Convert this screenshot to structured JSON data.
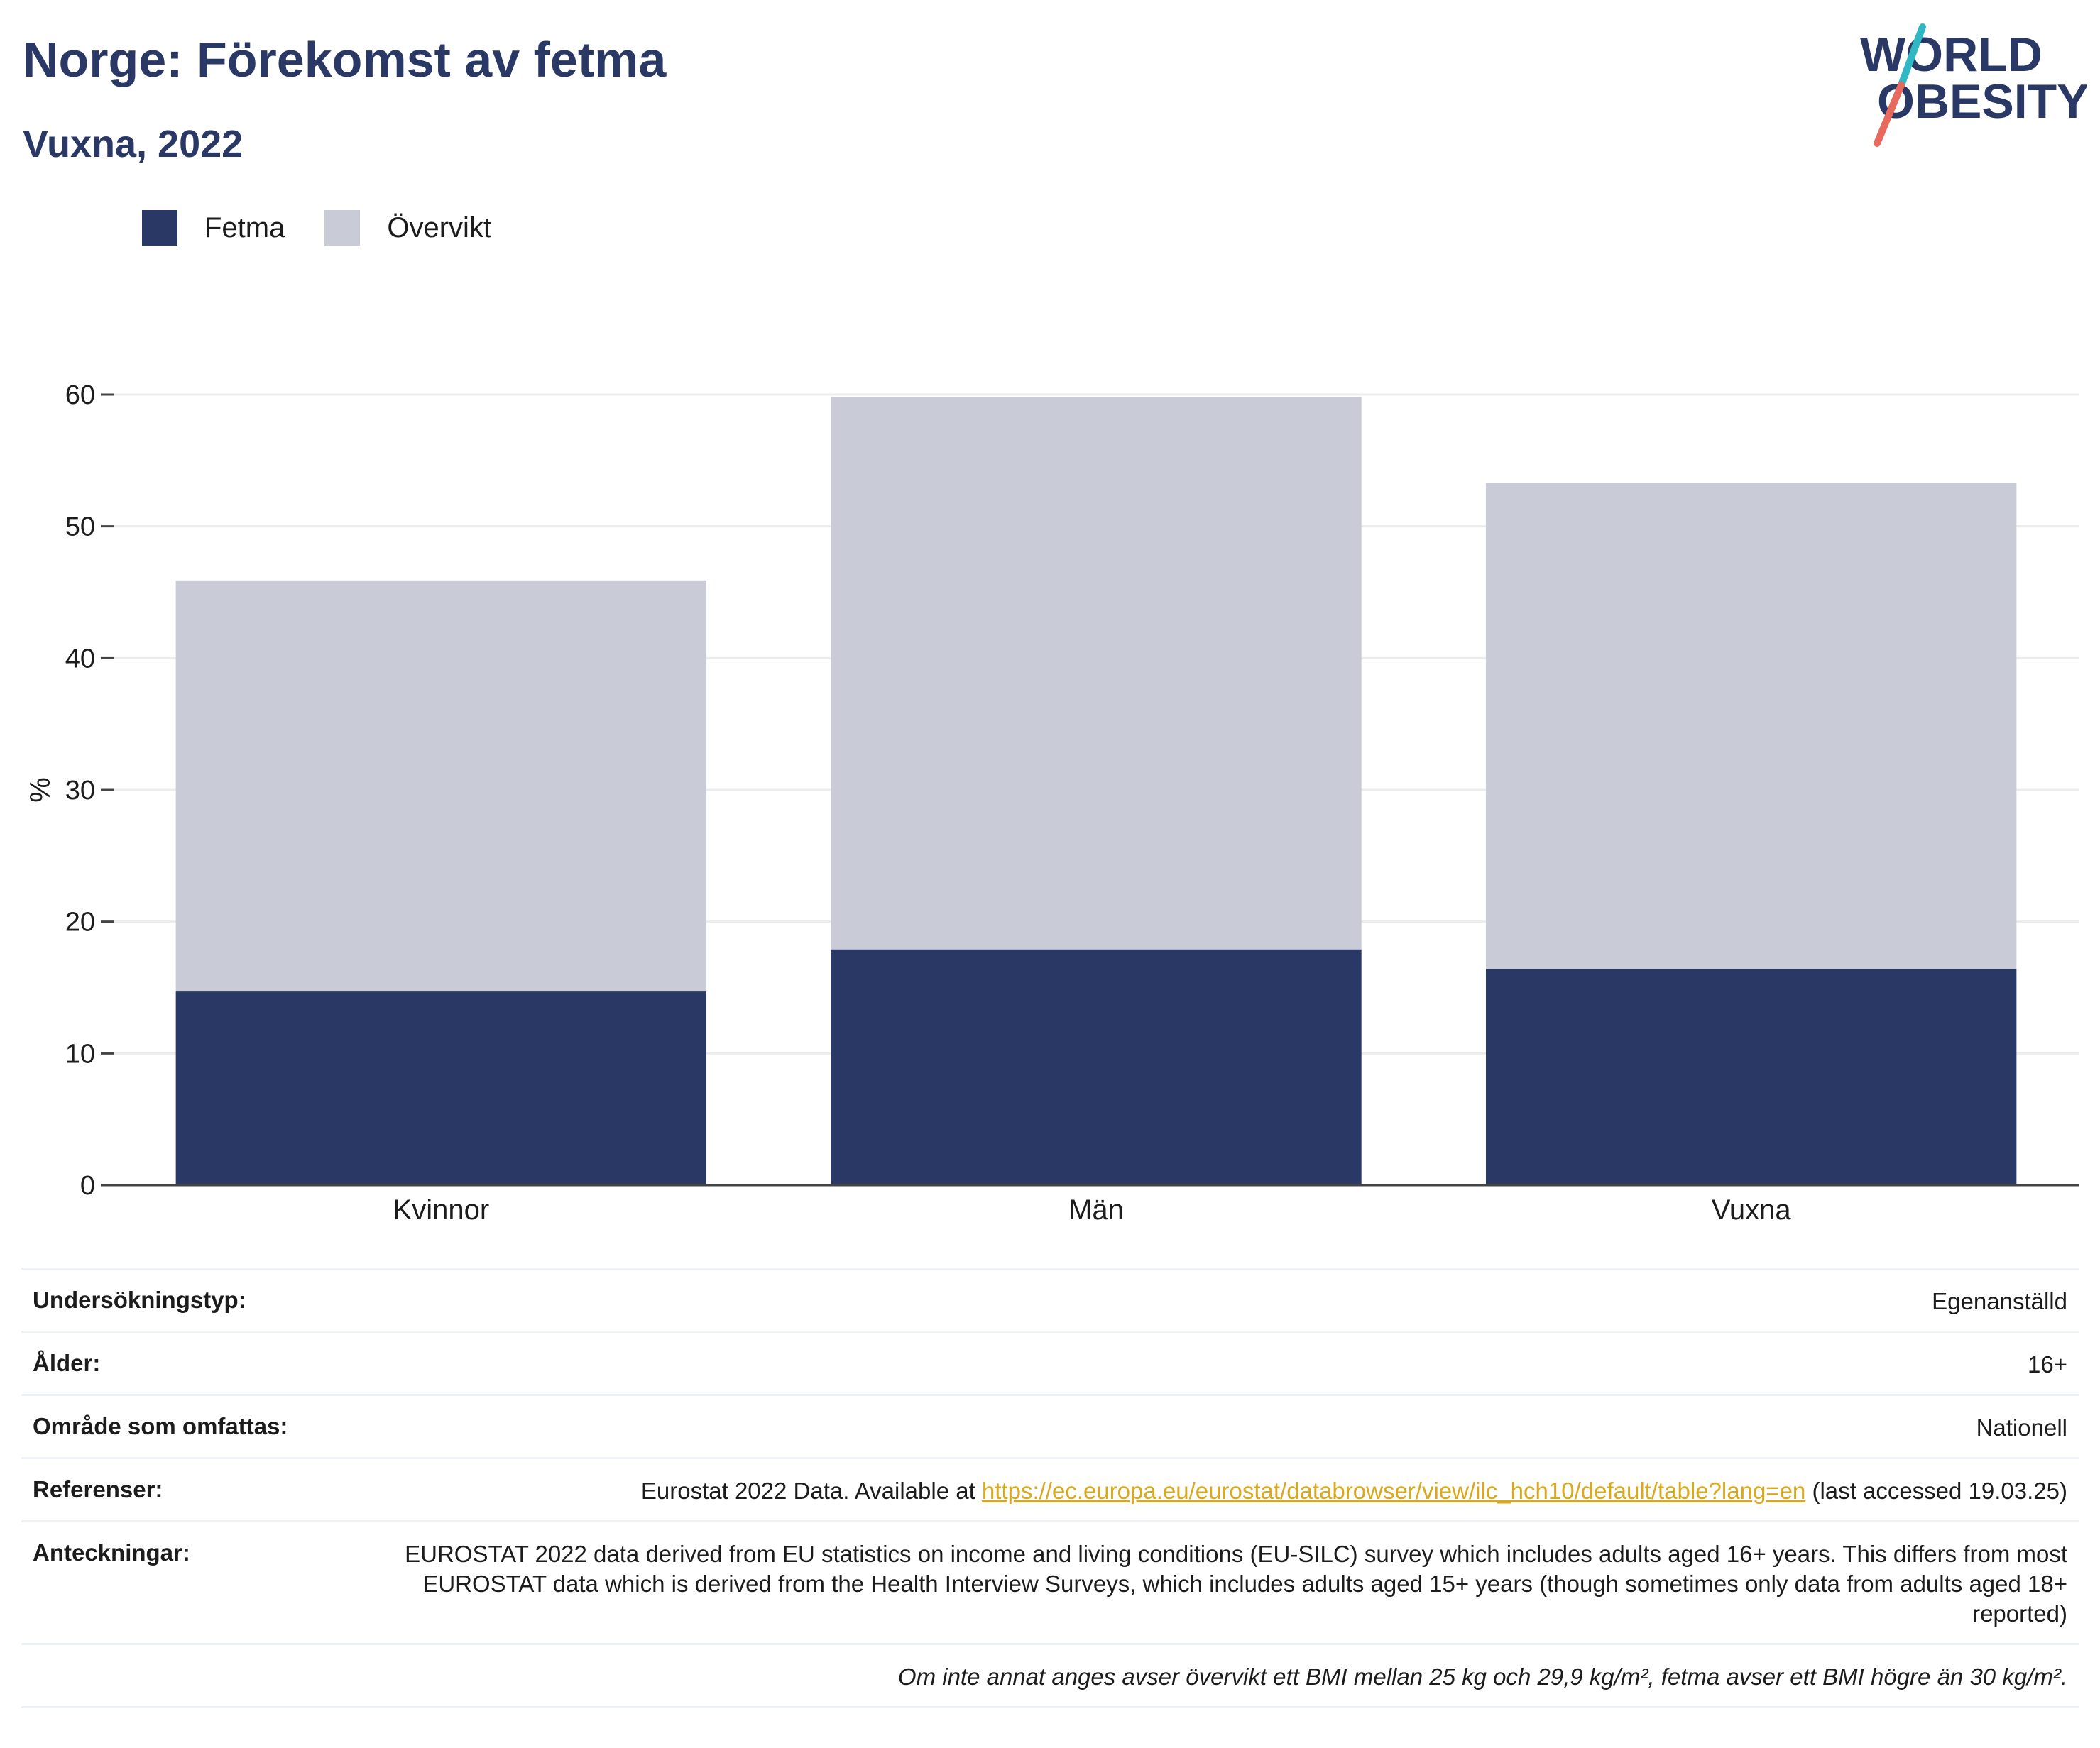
{
  "header": {
    "title": "Norge: Förekomst av fetma",
    "subtitle": "Vuxna, 2022"
  },
  "logo": {
    "text_line1": "WORLD",
    "text_line2": "OBESITY",
    "colors": {
      "text": "#2a3865",
      "slash_top": "#2fb8c4",
      "slash_bottom": "#e8695d"
    }
  },
  "legend": [
    {
      "label": "Fetma",
      "color": "#2a3865"
    },
    {
      "label": "Övervikt",
      "color": "#c9cbd7"
    }
  ],
  "chart_data": {
    "type": "bar",
    "stacked": true,
    "categories": [
      "Kvinnor",
      "Män",
      "Vuxna"
    ],
    "series": [
      {
        "name": "Fetma",
        "color": "#2a3865",
        "values": [
          14.7,
          17.9,
          16.4
        ]
      },
      {
        "name": "Övervikt",
        "color": "#c9cbd7",
        "values": [
          31.2,
          41.9,
          36.9
        ]
      }
    ],
    "ylabel": "%",
    "xlabel": "",
    "ylim": [
      0,
      60
    ],
    "yticks": [
      0,
      10,
      20,
      30,
      40,
      50,
      60
    ],
    "grid": true
  },
  "info": {
    "survey_type": {
      "label": "Undersökningstyp:",
      "value": "Egenanställd"
    },
    "age": {
      "label": "Ålder:",
      "value": "16+"
    },
    "area": {
      "label": "Område som omfattas:",
      "value": "Nationell"
    },
    "references": {
      "label": "Referenser:",
      "prefix": "Eurostat 2022 Data. Available at ",
      "link": "https://ec.europa.eu/eurostat/databrowser/view/ilc_hch10/default/table?lang=en",
      "suffix": " (last accessed 19.03.25)"
    },
    "notes": {
      "label": "Anteckningar:",
      "value": "EUROSTAT 2022 data derived from EU statistics on income and living conditions (EU-SILC) survey which includes adults aged 16+ years. This differs from most EUROSTAT data which is derived from the Health Interview Surveys, which includes adults aged 15+ years (though sometimes only data from adults aged 18+ reported)"
    },
    "footnote": "Om inte annat anges avser övervikt ett BMI mellan 25 kg och 29,9 kg/m², fetma avser ett BMI högre än 30 kg/m²."
  }
}
